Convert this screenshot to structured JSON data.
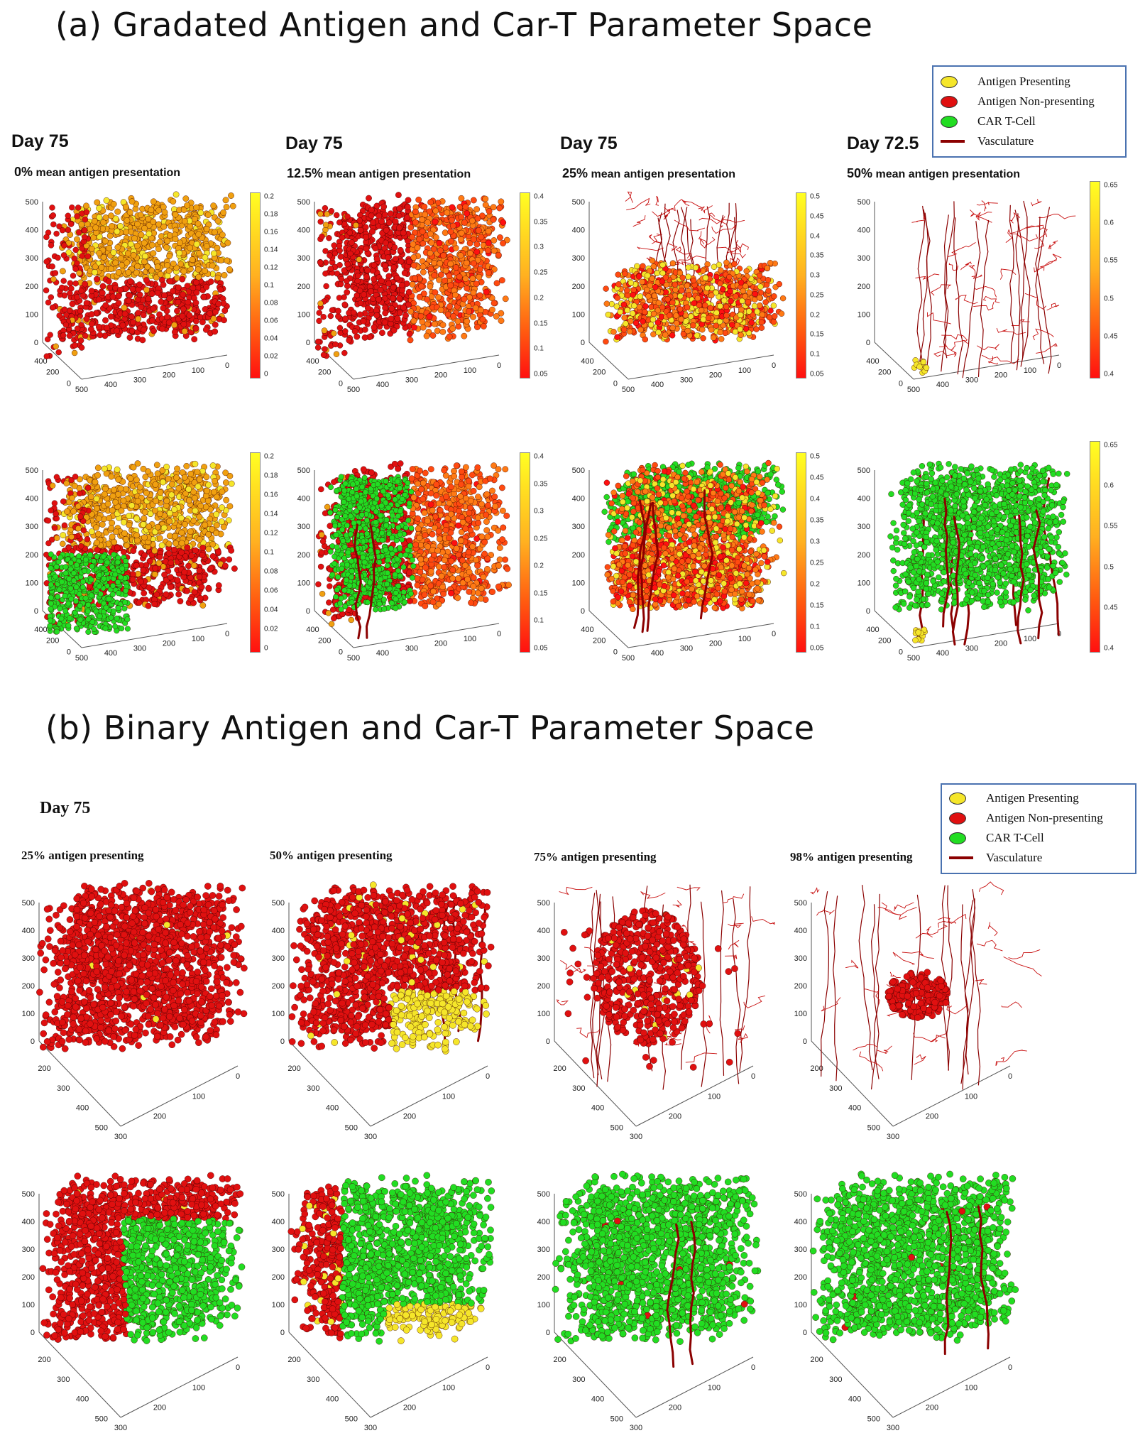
{
  "section_a": {
    "title": "(a)  Gradated Antigen and Car-T Parameter Space",
    "columns": [
      {
        "day": "Day 75",
        "pct": "0%",
        "label": " mean antigen presentation",
        "colorbar_ticks": [
          "0.2",
          "0.18",
          "0.16",
          "0.14",
          "0.12",
          "0.1",
          "0.08",
          "0.06",
          "0.04",
          "0.02",
          "0"
        ],
        "axis": {
          "z": [
            "500",
            "400",
            "300",
            "200",
            "100",
            "0"
          ],
          "y": [
            "400",
            "200",
            "0"
          ],
          "x": [
            "500",
            "400",
            "300",
            "200",
            "100",
            "0"
          ]
        }
      },
      {
        "day": "Day 75",
        "pct": "12.5%",
        "label": " mean antigen presentation",
        "colorbar_ticks": [
          "0.4",
          "0.35",
          "0.3",
          "0.25",
          "0.2",
          "0.15",
          "0.1",
          "0.05"
        ],
        "axis": {
          "z": [
            "500",
            "400",
            "300",
            "200",
            "100",
            "0"
          ],
          "y": [
            "400",
            "200",
            "0"
          ],
          "x": [
            "500",
            "400",
            "300",
            "200",
            "100",
            "0"
          ]
        }
      },
      {
        "day": "Day 75",
        "pct": "25%",
        "label": " mean antigen presentation",
        "colorbar_ticks": [
          "0.5",
          "0.45",
          "0.4",
          "0.35",
          "0.3",
          "0.25",
          "0.2",
          "0.15",
          "0.1",
          "0.05"
        ],
        "axis": {
          "z": [
            "500",
            "400",
            "300",
            "200",
            "100",
            "0"
          ],
          "y": [
            "400",
            "200",
            "0"
          ],
          "x": [
            "500",
            "400",
            "300",
            "200",
            "100",
            "0"
          ]
        }
      },
      {
        "day": "Day 72.5",
        "pct": "50%",
        "label": " mean antigen presentation",
        "colorbar_ticks": [
          "0.65",
          "0.6",
          "0.55",
          "0.5",
          "0.45",
          "0.4"
        ],
        "axis": {
          "z": [
            "500",
            "400",
            "300",
            "200",
            "100",
            "0"
          ],
          "y": [
            "400",
            "200",
            "0"
          ],
          "x": [
            "500",
            "400",
            "300",
            "200",
            "100",
            "0"
          ]
        }
      }
    ]
  },
  "section_b": {
    "title": "(b) Binary Antigen and Car-T Parameter Space",
    "day": "Day 75",
    "columns": [
      {
        "label": "25% antigen presenting"
      },
      {
        "label": "50% antigen presenting"
      },
      {
        "label": "75% antigen presenting"
      },
      {
        "label": "98% antigen presenting"
      }
    ],
    "axis": {
      "z": [
        "500",
        "400",
        "300",
        "200",
        "100",
        "0"
      ],
      "y": [
        "200",
        "300",
        "400",
        "500"
      ],
      "x": [
        "300",
        "200",
        "100",
        "0"
      ]
    }
  },
  "legend": {
    "items": [
      {
        "label": "Antigen Presenting",
        "color": "#f5e62a"
      },
      {
        "label": "Antigen Non-presenting",
        "color": "#e01010"
      },
      {
        "label": "CAR T-Cell",
        "color": "#22dd22"
      },
      {
        "label": "Vasculature",
        "color": "#8b0000"
      }
    ]
  },
  "colors": {
    "antigen_presenting": "#f5e62a",
    "non_presenting": "#e01010",
    "car_t": "#22dd22",
    "vasculature": "#8b0000",
    "orange": "#f0a010"
  }
}
